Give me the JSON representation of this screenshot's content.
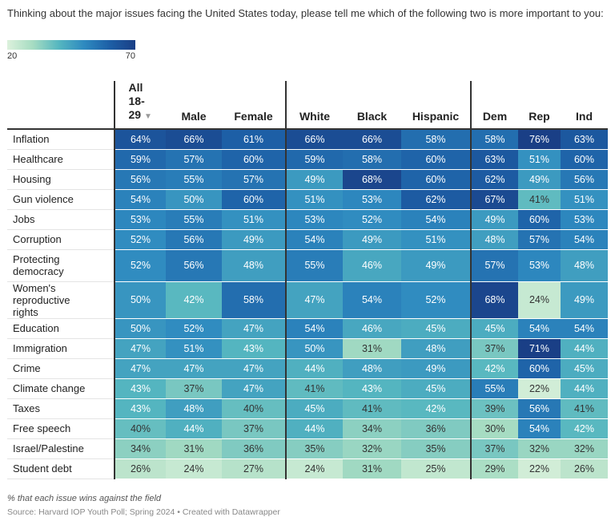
{
  "title": "Thinking about the major issues facing the United States today, please tell me which of the following two is more important to you:",
  "legend": {
    "min_label": "20",
    "max_label": "70",
    "min": 20,
    "max": 70
  },
  "colors": {
    "low": "#dcf1dc",
    "mid": "#56b7c0",
    "high": "#1a3f86",
    "separator": "#333333"
  },
  "chart_data": {
    "type": "heatmap",
    "title": "Thinking about the major issues facing the United States today, please tell me which of the following two is more important to you:",
    "value_unit": "%",
    "color_range": [
      20,
      70
    ],
    "columns": [
      "All 18-29",
      "Male",
      "Female",
      "White",
      "Black",
      "Hispanic",
      "Dem",
      "Rep",
      "Ind"
    ],
    "sorted_column": "All 18-29",
    "rows": [
      {
        "label": "Inflation",
        "values": [
          64,
          66,
          61,
          66,
          66,
          58,
          58,
          76,
          63
        ]
      },
      {
        "label": "Healthcare",
        "values": [
          59,
          57,
          60,
          59,
          58,
          60,
          63,
          51,
          60
        ]
      },
      {
        "label": "Housing",
        "values": [
          56,
          55,
          57,
          49,
          68,
          60,
          62,
          49,
          56
        ]
      },
      {
        "label": "Gun violence",
        "values": [
          54,
          50,
          60,
          51,
          53,
          62,
          67,
          41,
          51
        ]
      },
      {
        "label": "Jobs",
        "values": [
          53,
          55,
          51,
          53,
          52,
          54,
          49,
          60,
          53
        ]
      },
      {
        "label": "Corruption",
        "values": [
          52,
          56,
          49,
          54,
          49,
          51,
          48,
          57,
          54
        ]
      },
      {
        "label": "Protecting democracy",
        "values": [
          52,
          56,
          48,
          55,
          46,
          49,
          57,
          53,
          48
        ]
      },
      {
        "label": "Women's reproductive rights",
        "values": [
          50,
          42,
          58,
          47,
          54,
          52,
          68,
          24,
          49
        ]
      },
      {
        "label": "Education",
        "values": [
          50,
          52,
          47,
          54,
          46,
          45,
          45,
          54,
          54
        ]
      },
      {
        "label": "Immigration",
        "values": [
          47,
          51,
          43,
          50,
          31,
          48,
          37,
          71,
          44
        ]
      },
      {
        "label": "Crime",
        "values": [
          47,
          47,
          47,
          44,
          48,
          49,
          42,
          60,
          45
        ]
      },
      {
        "label": "Climate change",
        "values": [
          43,
          37,
          47,
          41,
          43,
          45,
          55,
          22,
          44
        ]
      },
      {
        "label": "Taxes",
        "values": [
          43,
          48,
          40,
          45,
          41,
          42,
          39,
          56,
          41
        ]
      },
      {
        "label": "Free speech",
        "values": [
          40,
          44,
          37,
          44,
          34,
          36,
          30,
          54,
          42
        ]
      },
      {
        "label": "Israel/Palestine",
        "values": [
          34,
          31,
          36,
          35,
          32,
          35,
          37,
          32,
          32
        ]
      },
      {
        "label": "Student debt",
        "values": [
          26,
          24,
          27,
          24,
          31,
          25,
          29,
          22,
          26
        ]
      }
    ]
  },
  "notes": "% that each issue wins against the field",
  "source": "Source: Harvard IOP Youth Poll; Spring 2024 • Created with Datawrapper"
}
